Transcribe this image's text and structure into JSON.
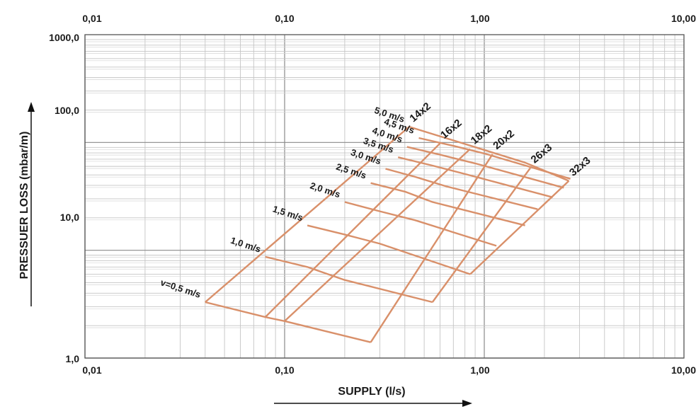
{
  "chart_data": {
    "type": "line",
    "title": "",
    "xlabel": "SUPPLY (l/s)",
    "ylabel": "PRESSUER LOSS (mbar/m)",
    "x_scale": "log",
    "y_scale": "log",
    "xlim": [
      0.01,
      10
    ],
    "ylim": [
      1,
      1000
    ],
    "x_tick_labels": [
      "0,01",
      "0,10",
      "1,00",
      "10,00"
    ],
    "y_tick_labels": [
      "1,0",
      "10,0",
      "100,0",
      "1000,0"
    ],
    "grid": true,
    "curve_color": "#d9906a",
    "velocity_lines": [
      {
        "name": "v=0,5 m/s",
        "points": [
          [
            0.04,
            3.3
          ],
          [
            0.08,
            2.4
          ],
          [
            0.1,
            2.2
          ],
          [
            0.27,
            1.4
          ]
        ]
      },
      {
        "name": "1,0 m/s",
        "points": [
          [
            0.08,
            8.7
          ],
          [
            0.13,
            7.0
          ],
          [
            0.2,
            5.3
          ],
          [
            0.55,
            3.3
          ]
        ]
      },
      {
        "name": "1,5 m/s",
        "points": [
          [
            0.13,
            17.0
          ],
          [
            0.2,
            14.0
          ],
          [
            0.3,
            11.5
          ],
          [
            0.85,
            6.0
          ]
        ]
      },
      {
        "name": "2,0 m/s",
        "points": [
          [
            0.2,
            28.0
          ],
          [
            0.3,
            23.0
          ],
          [
            0.45,
            19.0
          ],
          [
            1.15,
            11.0
          ]
        ]
      },
      {
        "name": "2,5 m/s",
        "points": [
          [
            0.27,
            42.0
          ],
          [
            0.4,
            35.0
          ],
          [
            0.55,
            28.0
          ],
          [
            1.6,
            17.0
          ]
        ]
      },
      {
        "name": "3,0 m/s",
        "points": [
          [
            0.32,
            57.0
          ],
          [
            0.45,
            48.0
          ],
          [
            0.65,
            39.0
          ],
          [
            1.85,
            24.0
          ]
        ]
      },
      {
        "name": "3,5 m/s",
        "points": [
          [
            0.37,
            73.0
          ],
          [
            0.55,
            61.0
          ],
          [
            0.8,
            51.0
          ],
          [
            2.2,
            31.0
          ]
        ]
      },
      {
        "name": "4,0 m/s",
        "points": [
          [
            0.41,
            91.0
          ],
          [
            0.6,
            77.0
          ],
          [
            0.9,
            64.0
          ],
          [
            2.5,
            38.0
          ]
        ]
      },
      {
        "name": "4,5 m/s",
        "points": [
          [
            0.47,
            110.0
          ],
          [
            0.7,
            93.0
          ],
          [
            1.0,
            79.0
          ],
          [
            2.7,
            46.0
          ]
        ]
      },
      {
        "name": "5,0 m/s",
        "points": [
          [
            0.42,
            140.0
          ],
          [
            1.6,
            65.0
          ],
          [
            2.65,
            44.0
          ]
        ]
      }
    ],
    "pipe_lines": [
      {
        "name": "14x2",
        "points": [
          [
            0.04,
            3.3
          ],
          [
            0.42,
            140.0
          ]
        ]
      },
      {
        "name": "16x2",
        "points": [
          [
            0.08,
            2.4
          ],
          [
            0.6,
            98.0
          ]
        ]
      },
      {
        "name": "18x2",
        "points": [
          [
            0.1,
            2.2
          ],
          [
            0.85,
            87.0
          ]
        ]
      },
      {
        "name": "20x2",
        "points": [
          [
            0.27,
            1.4
          ],
          [
            1.1,
            78.0
          ]
        ]
      },
      {
        "name": "26x3",
        "points": [
          [
            0.55,
            3.3
          ],
          [
            1.7,
            58.0
          ]
        ]
      },
      {
        "name": "32x3",
        "points": [
          [
            0.85,
            6.0
          ],
          [
            2.65,
            44.0
          ]
        ]
      }
    ]
  }
}
